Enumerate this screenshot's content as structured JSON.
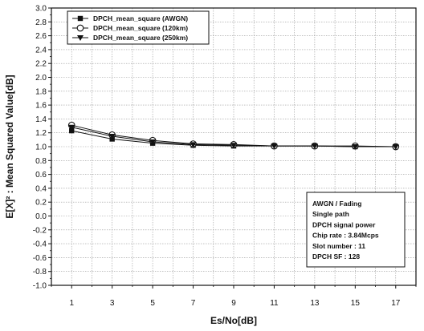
{
  "chart_data": {
    "type": "line",
    "xlabel": "Es/No[dB]",
    "ylabel": "E[X]² : Mean Squared Value[dB]",
    "xlim": [
      0,
      18
    ],
    "ylim": [
      -1.0,
      3.0
    ],
    "xticks": [
      1,
      3,
      5,
      7,
      9,
      11,
      13,
      15,
      17
    ],
    "yticks": [
      -1.0,
      -0.8,
      -0.6,
      -0.4,
      -0.2,
      0.0,
      0.2,
      0.4,
      0.6,
      0.8,
      1.0,
      1.2,
      1.4,
      1.6,
      1.8,
      2.0,
      2.2,
      2.4,
      2.6,
      2.8,
      3.0
    ],
    "grid": true,
    "legend_position": "top-left",
    "x": [
      1,
      3,
      5,
      7,
      9,
      11,
      13,
      15,
      17
    ],
    "series": [
      {
        "name": "DPCH_mean_square (AWGN)",
        "marker": "square",
        "color": "#111111",
        "values": [
          1.23,
          1.11,
          1.05,
          1.02,
          1.01,
          1.01,
          1.01,
          1.0,
          1.0
        ]
      },
      {
        "name": "DPCH_mean_square (120km)",
        "marker": "circle-open",
        "color": "#111111",
        "values": [
          1.31,
          1.17,
          1.09,
          1.04,
          1.03,
          1.01,
          1.01,
          1.01,
          1.0
        ]
      },
      {
        "name": "DPCH_mean_square (250km)",
        "marker": "triangle-down",
        "color": "#111111",
        "values": [
          1.28,
          1.15,
          1.07,
          1.03,
          1.02,
          1.01,
          1.01,
          1.0,
          1.0
        ]
      }
    ],
    "annotation": [
      "AWGN / Fading",
      "Single path",
      "DPCH signal power",
      "Chip rate : 3.84Mcps",
      "Slot number : 11",
      "DPCH SF : 128"
    ]
  }
}
